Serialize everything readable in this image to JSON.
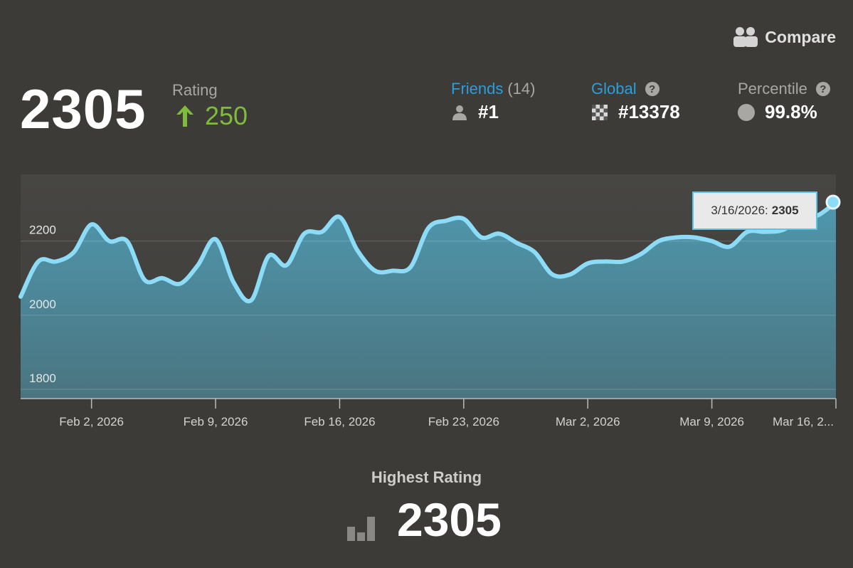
{
  "header": {
    "compare_label": "Compare",
    "rating_value": "2305",
    "rating_label": "Rating",
    "rating_change": "250"
  },
  "stats": {
    "friends": {
      "label": "Friends",
      "count": "(14)",
      "value": "#1",
      "icon": "person-icon"
    },
    "global": {
      "label": "Global",
      "value": "#13378",
      "icon": "checkered-icon"
    },
    "percentile": {
      "label": "Percentile",
      "value": "99.8%",
      "icon": "circle-icon"
    }
  },
  "colors": {
    "background": "#3c3b38",
    "line": "#8cdcf8",
    "fill_top": "#4f97ad",
    "fill_bottom": "#4a7480",
    "positive": "#7fbb3c",
    "link": "#2c9ed8"
  },
  "tooltip": {
    "date": "3/16/2026:",
    "value": "2305"
  },
  "chart_data": {
    "type": "area",
    "x_labels": [
      "Feb 2, 2026",
      "Feb 9, 2026",
      "Feb 16, 2026",
      "Feb 23, 2026",
      "Mar 2, 2026",
      "Mar 9, 2026",
      "Mar 16, 2..."
    ],
    "y_ticks": [
      2200,
      2000,
      1800
    ],
    "ylim": [
      1775,
      2380
    ],
    "grid": true,
    "series": [
      {
        "x": [
          "2026-01-29",
          "2026-01-30",
          "2026-01-31",
          "2026-02-01",
          "2026-02-02",
          "2026-02-03",
          "2026-02-04",
          "2026-02-05",
          "2026-02-06",
          "2026-02-07",
          "2026-02-08",
          "2026-02-09",
          "2026-02-10",
          "2026-02-11",
          "2026-02-12",
          "2026-02-13",
          "2026-02-14",
          "2026-02-15",
          "2026-02-16",
          "2026-02-17",
          "2026-02-18",
          "2026-02-19",
          "2026-02-20",
          "2026-02-21",
          "2026-02-22",
          "2026-02-23",
          "2026-02-24",
          "2026-02-25",
          "2026-02-26",
          "2026-02-27",
          "2026-02-28",
          "2026-03-01",
          "2026-03-02",
          "2026-03-03",
          "2026-03-04",
          "2026-03-05",
          "2026-03-06",
          "2026-03-07",
          "2026-03-08",
          "2026-03-09",
          "2026-03-10",
          "2026-03-11",
          "2026-03-12",
          "2026-03-13",
          "2026-03-14",
          "2026-03-15",
          "2026-03-16"
        ],
        "values": [
          2050,
          2145,
          2145,
          2170,
          2245,
          2200,
          2200,
          2095,
          2100,
          2085,
          2135,
          2205,
          2090,
          2040,
          2160,
          2135,
          2220,
          2225,
          2265,
          2175,
          2120,
          2120,
          2130,
          2235,
          2255,
          2260,
          2210,
          2220,
          2195,
          2170,
          2110,
          2110,
          2140,
          2145,
          2145,
          2165,
          2200,
          2210,
          2210,
          2200,
          2185,
          2225,
          2225,
          2230,
          2260,
          2270,
          2305
        ]
      }
    ]
  },
  "highest": {
    "label": "Highest Rating",
    "value": "2305"
  }
}
